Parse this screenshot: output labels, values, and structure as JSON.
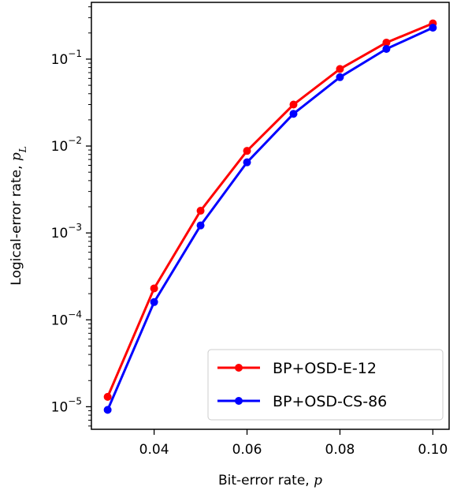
{
  "chart_data": {
    "type": "line",
    "xlabel": "Bit-error rate, ",
    "xlabel_symbol": "p",
    "ylabel": "Logical-error rate, ",
    "ylabel_symbol": "p",
    "ylabel_symbol_sub": "L",
    "xlim": [
      0.0265,
      0.1035
    ],
    "ylim": [
      5.5e-06,
      0.45
    ],
    "yscale": "log",
    "grid": false,
    "legend_position": "lower-right",
    "x_ticks": [
      {
        "value": 0.04,
        "label": "0.04"
      },
      {
        "value": 0.06,
        "label": "0.06"
      },
      {
        "value": 0.08,
        "label": "0.08"
      },
      {
        "value": 0.1,
        "label": "0.10"
      }
    ],
    "y_ticks": [
      {
        "value": 1e-05,
        "base": "10",
        "exp": "−5"
      },
      {
        "value": 0.0001,
        "base": "10",
        "exp": "−4"
      },
      {
        "value": 0.001,
        "base": "10",
        "exp": "−3"
      },
      {
        "value": 0.01,
        "base": "10",
        "exp": "−2"
      },
      {
        "value": 0.1,
        "base": "10",
        "exp": "−1"
      }
    ],
    "x": [
      0.03,
      0.04,
      0.05,
      0.06,
      0.07,
      0.08,
      0.09,
      0.1
    ],
    "series": [
      {
        "name": "BP+OSD-E-12",
        "color": "#ff0000",
        "values": [
          1.3e-05,
          0.00023,
          0.0018,
          0.0088,
          0.03,
          0.077,
          0.155,
          0.258
        ]
      },
      {
        "name": "BP+OSD-CS-86",
        "color": "#0000ff",
        "values": [
          9.2e-06,
          0.00016,
          0.00122,
          0.0065,
          0.0235,
          0.062,
          0.131,
          0.23
        ]
      }
    ]
  }
}
